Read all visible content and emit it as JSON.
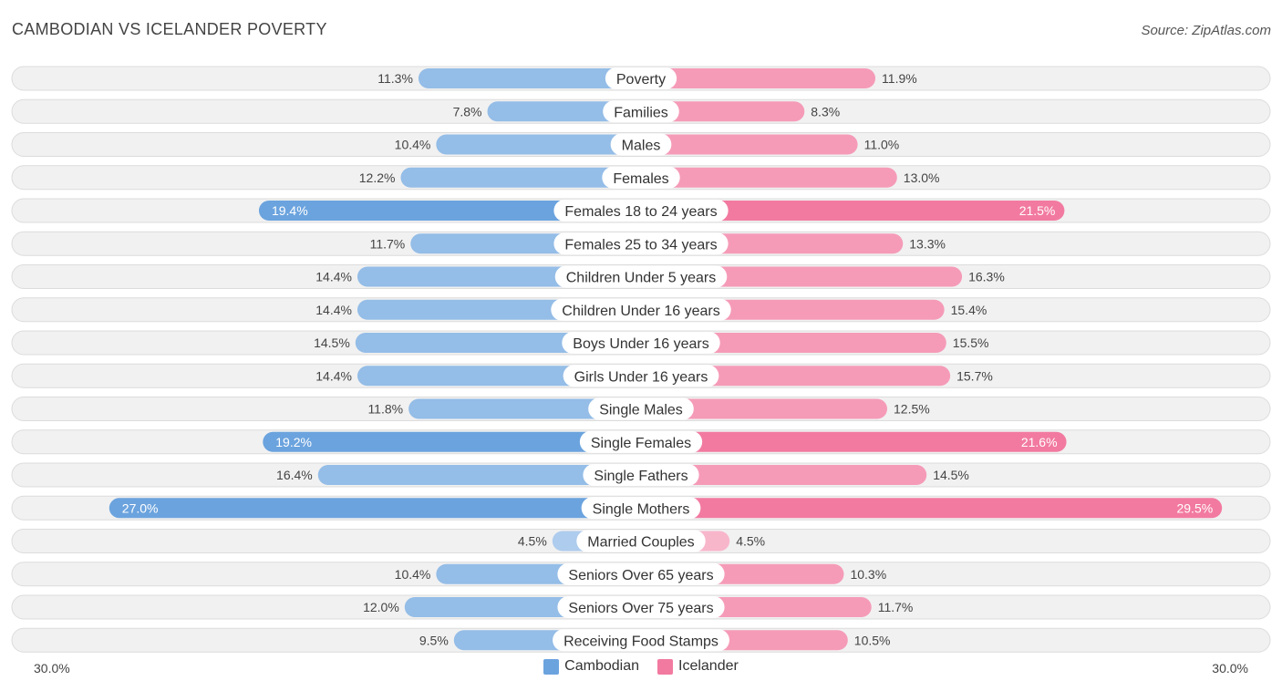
{
  "header": {
    "title": "CAMBODIAN VS ICELANDER POVERTY",
    "source": "Source: ZipAtlas.com"
  },
  "colors": {
    "cambodian": "#6ba3de",
    "icelander": "#f27aa0"
  },
  "chart_data": {
    "type": "bar",
    "orientation": "horizontal-diverging",
    "title": "CAMBODIAN VS ICELANDER POVERTY",
    "axis_max": 30.0,
    "axis_left_label": "30.0%",
    "axis_right_label": "30.0%",
    "legend_position": "bottom-center",
    "categories": [
      "Poverty",
      "Families",
      "Males",
      "Females",
      "Females 18 to 24 years",
      "Females 25 to 34 years",
      "Children Under 5 years",
      "Children Under 16 years",
      "Boys Under 16 years",
      "Girls Under 16 years",
      "Single Males",
      "Single Females",
      "Single Fathers",
      "Single Mothers",
      "Married Couples",
      "Seniors Over 65 years",
      "Seniors Over 75 years",
      "Receiving Food Stamps"
    ],
    "series": [
      {
        "name": "Cambodian",
        "values": [
          11.3,
          7.8,
          10.4,
          12.2,
          19.4,
          11.7,
          14.4,
          14.4,
          14.5,
          14.4,
          11.8,
          19.2,
          16.4,
          27.0,
          4.5,
          10.4,
          12.0,
          9.5
        ],
        "labels": [
          "11.3%",
          "7.8%",
          "10.4%",
          "12.2%",
          "19.4%",
          "11.7%",
          "14.4%",
          "14.4%",
          "14.5%",
          "14.4%",
          "11.8%",
          "19.2%",
          "16.4%",
          "27.0%",
          "4.5%",
          "10.4%",
          "12.0%",
          "9.5%"
        ]
      },
      {
        "name": "Icelander",
        "values": [
          11.9,
          8.3,
          11.0,
          13.0,
          21.5,
          13.3,
          16.3,
          15.4,
          15.5,
          15.7,
          12.5,
          21.6,
          14.5,
          29.5,
          4.5,
          10.3,
          11.7,
          10.5
        ],
        "labels": [
          "11.9%",
          "8.3%",
          "11.0%",
          "13.0%",
          "21.5%",
          "13.3%",
          "16.3%",
          "15.4%",
          "15.5%",
          "15.7%",
          "12.5%",
          "21.6%",
          "14.5%",
          "29.5%",
          "4.5%",
          "10.3%",
          "11.7%",
          "10.5%"
        ]
      }
    ]
  }
}
